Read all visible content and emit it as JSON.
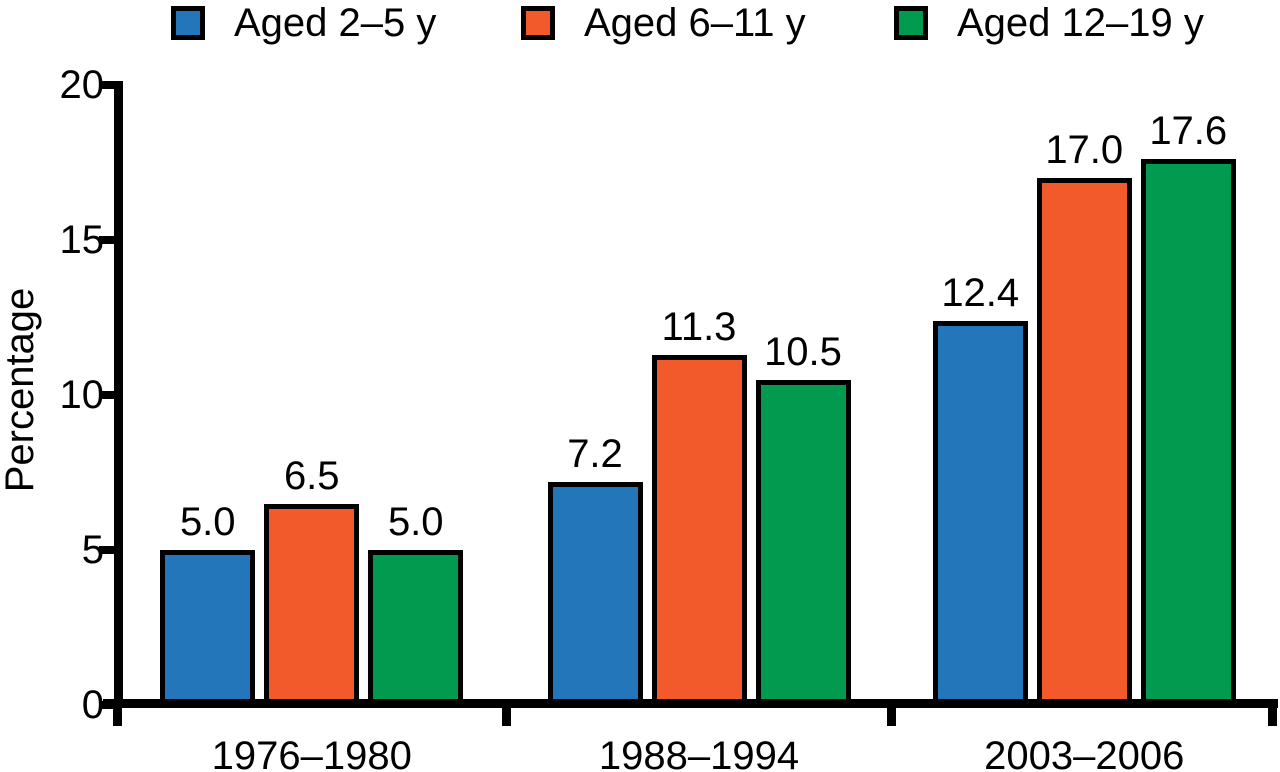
{
  "chart_data": {
    "type": "bar",
    "title": "",
    "xlabel": "",
    "ylabel": "Percentage",
    "categories": [
      "1976–1980",
      "1988–1994",
      "2003–2006"
    ],
    "series": [
      {
        "name": "Aged 2–5 y",
        "color": "#2376B9",
        "values": [
          5.0,
          7.2,
          12.4
        ]
      },
      {
        "name": "Aged 6–11 y",
        "color": "#F25A2B",
        "values": [
          6.5,
          11.3,
          17.0
        ]
      },
      {
        "name": "Aged 12–19 y",
        "color": "#019A4E",
        "values": [
          5.0,
          10.5,
          17.6
        ]
      }
    ],
    "ylim": [
      0,
      20
    ],
    "yticks": [
      0,
      5,
      10,
      15,
      20
    ],
    "value_label_decimals": 1,
    "grid": false,
    "legend_position": "top",
    "axis_color": "#000000",
    "bar_border_color": "#000000",
    "text_color": "#000000"
  }
}
